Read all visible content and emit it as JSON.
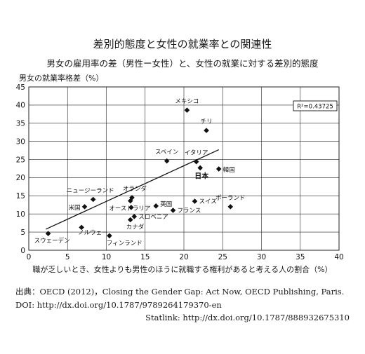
{
  "chart_data": {
    "type": "scatter",
    "title": "差別的態度と女性の就業率との関連性",
    "subtitle": "男女の雇用率の差（男性ー女性）と、女性の就業に対する差別的態度",
    "ylabel": "男女の就業率格差（%）",
    "xlabel": "職が乏しいとき、女性よりも男性のほうに就職する権利があると考える人の割合（%）",
    "xlim": [
      0,
      40
    ],
    "ylim": [
      0,
      45
    ],
    "xticks": [
      "0",
      "5",
      "10",
      "15",
      "20",
      "25",
      "30",
      "35",
      "40"
    ],
    "yticks": [
      "0",
      "5",
      "10",
      "15",
      "20",
      "25",
      "30",
      "35",
      "40",
      "45"
    ],
    "grid": true,
    "r2_label": "R²=0.43725",
    "trendline": {
      "x": [
        2.2,
        24.5
      ],
      "y": [
        5.8,
        27.7
      ]
    },
    "points": [
      {
        "label": "メキシコ",
        "x": 20.4,
        "y": 38.6
      },
      {
        "label": "チリ",
        "x": 22.9,
        "y": 33.0
      },
      {
        "label": "スペイン",
        "x": 17.8,
        "y": 24.6
      },
      {
        "label": "イタリア",
        "x": 21.6,
        "y": 24.4
      },
      {
        "label": "日本",
        "x": 22.1,
        "y": 22.7,
        "bold": true
      },
      {
        "label": "韓国",
        "x": 24.5,
        "y": 22.4
      },
      {
        "label": "ニュージーランド",
        "x": 8.3,
        "y": 14.0
      },
      {
        "label": "オランダ",
        "x": 13.3,
        "y": 14.5
      },
      {
        "label": "",
        "x": 13.1,
        "y": 13.6
      },
      {
        "label": "米国",
        "x": 7.2,
        "y": 12.0
      },
      {
        "label": "オーストラリア",
        "x": 13.2,
        "y": 11.8
      },
      {
        "label": "英国",
        "x": 16.4,
        "y": 12.2
      },
      {
        "label": "スイス",
        "x": 21.4,
        "y": 13.5
      },
      {
        "label": "ポーランド",
        "x": 26.0,
        "y": 12.0
      },
      {
        "label": "フランス",
        "x": 18.6,
        "y": 11.0
      },
      {
        "label": "スロベニア",
        "x": 13.6,
        "y": 9.3
      },
      {
        "label": "カナダ",
        "x": 13.1,
        "y": 8.4
      },
      {
        "label": "ノルウェー",
        "x": 6.8,
        "y": 6.3
      },
      {
        "label": "フィンランド",
        "x": 10.4,
        "y": 4.0
      },
      {
        "label": "スウェーデン",
        "x": 2.5,
        "y": 4.6
      }
    ]
  },
  "source": {
    "citation": "出典：OECD (2012)，Closing the Gender Gap: Act Now, OECD Publishing, Paris.",
    "doi": "DOI: http://dx.doi.org/10.1787/9789264179370-en",
    "statlink": "Statlink: http://dx.doi.org/10.1787/888932675310"
  }
}
